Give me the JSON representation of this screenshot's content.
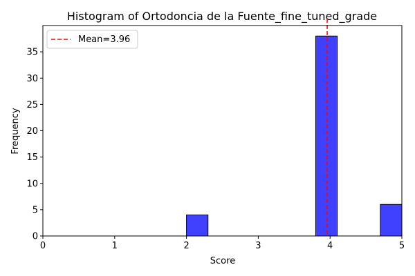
{
  "chart_data": {
    "type": "bar",
    "title": "Histogram of Ortodoncia de la Fuente_fine_tuned_grade",
    "xlabel": "Score",
    "ylabel": "Frequency",
    "xlim": [
      0,
      5
    ],
    "ylim": [
      0,
      40
    ],
    "xticks": [
      0,
      1,
      2,
      3,
      4,
      5
    ],
    "yticks": [
      0,
      5,
      10,
      15,
      20,
      25,
      30,
      35
    ],
    "bins": [
      {
        "x0": 2.0,
        "x1": 2.3,
        "count": 4
      },
      {
        "x0": 3.8,
        "x1": 4.1,
        "count": 38
      },
      {
        "x0": 4.7,
        "x1": 5.0,
        "count": 6
      }
    ],
    "bar_color": "#0000ff",
    "bar_opacity": 0.75,
    "mean": {
      "value": 3.96,
      "label": "Mean=3.96",
      "color": "#ff0000",
      "style": "dashed"
    },
    "legend": {
      "position": "top-left",
      "entries": [
        "Mean=3.96"
      ]
    },
    "grid": false
  }
}
